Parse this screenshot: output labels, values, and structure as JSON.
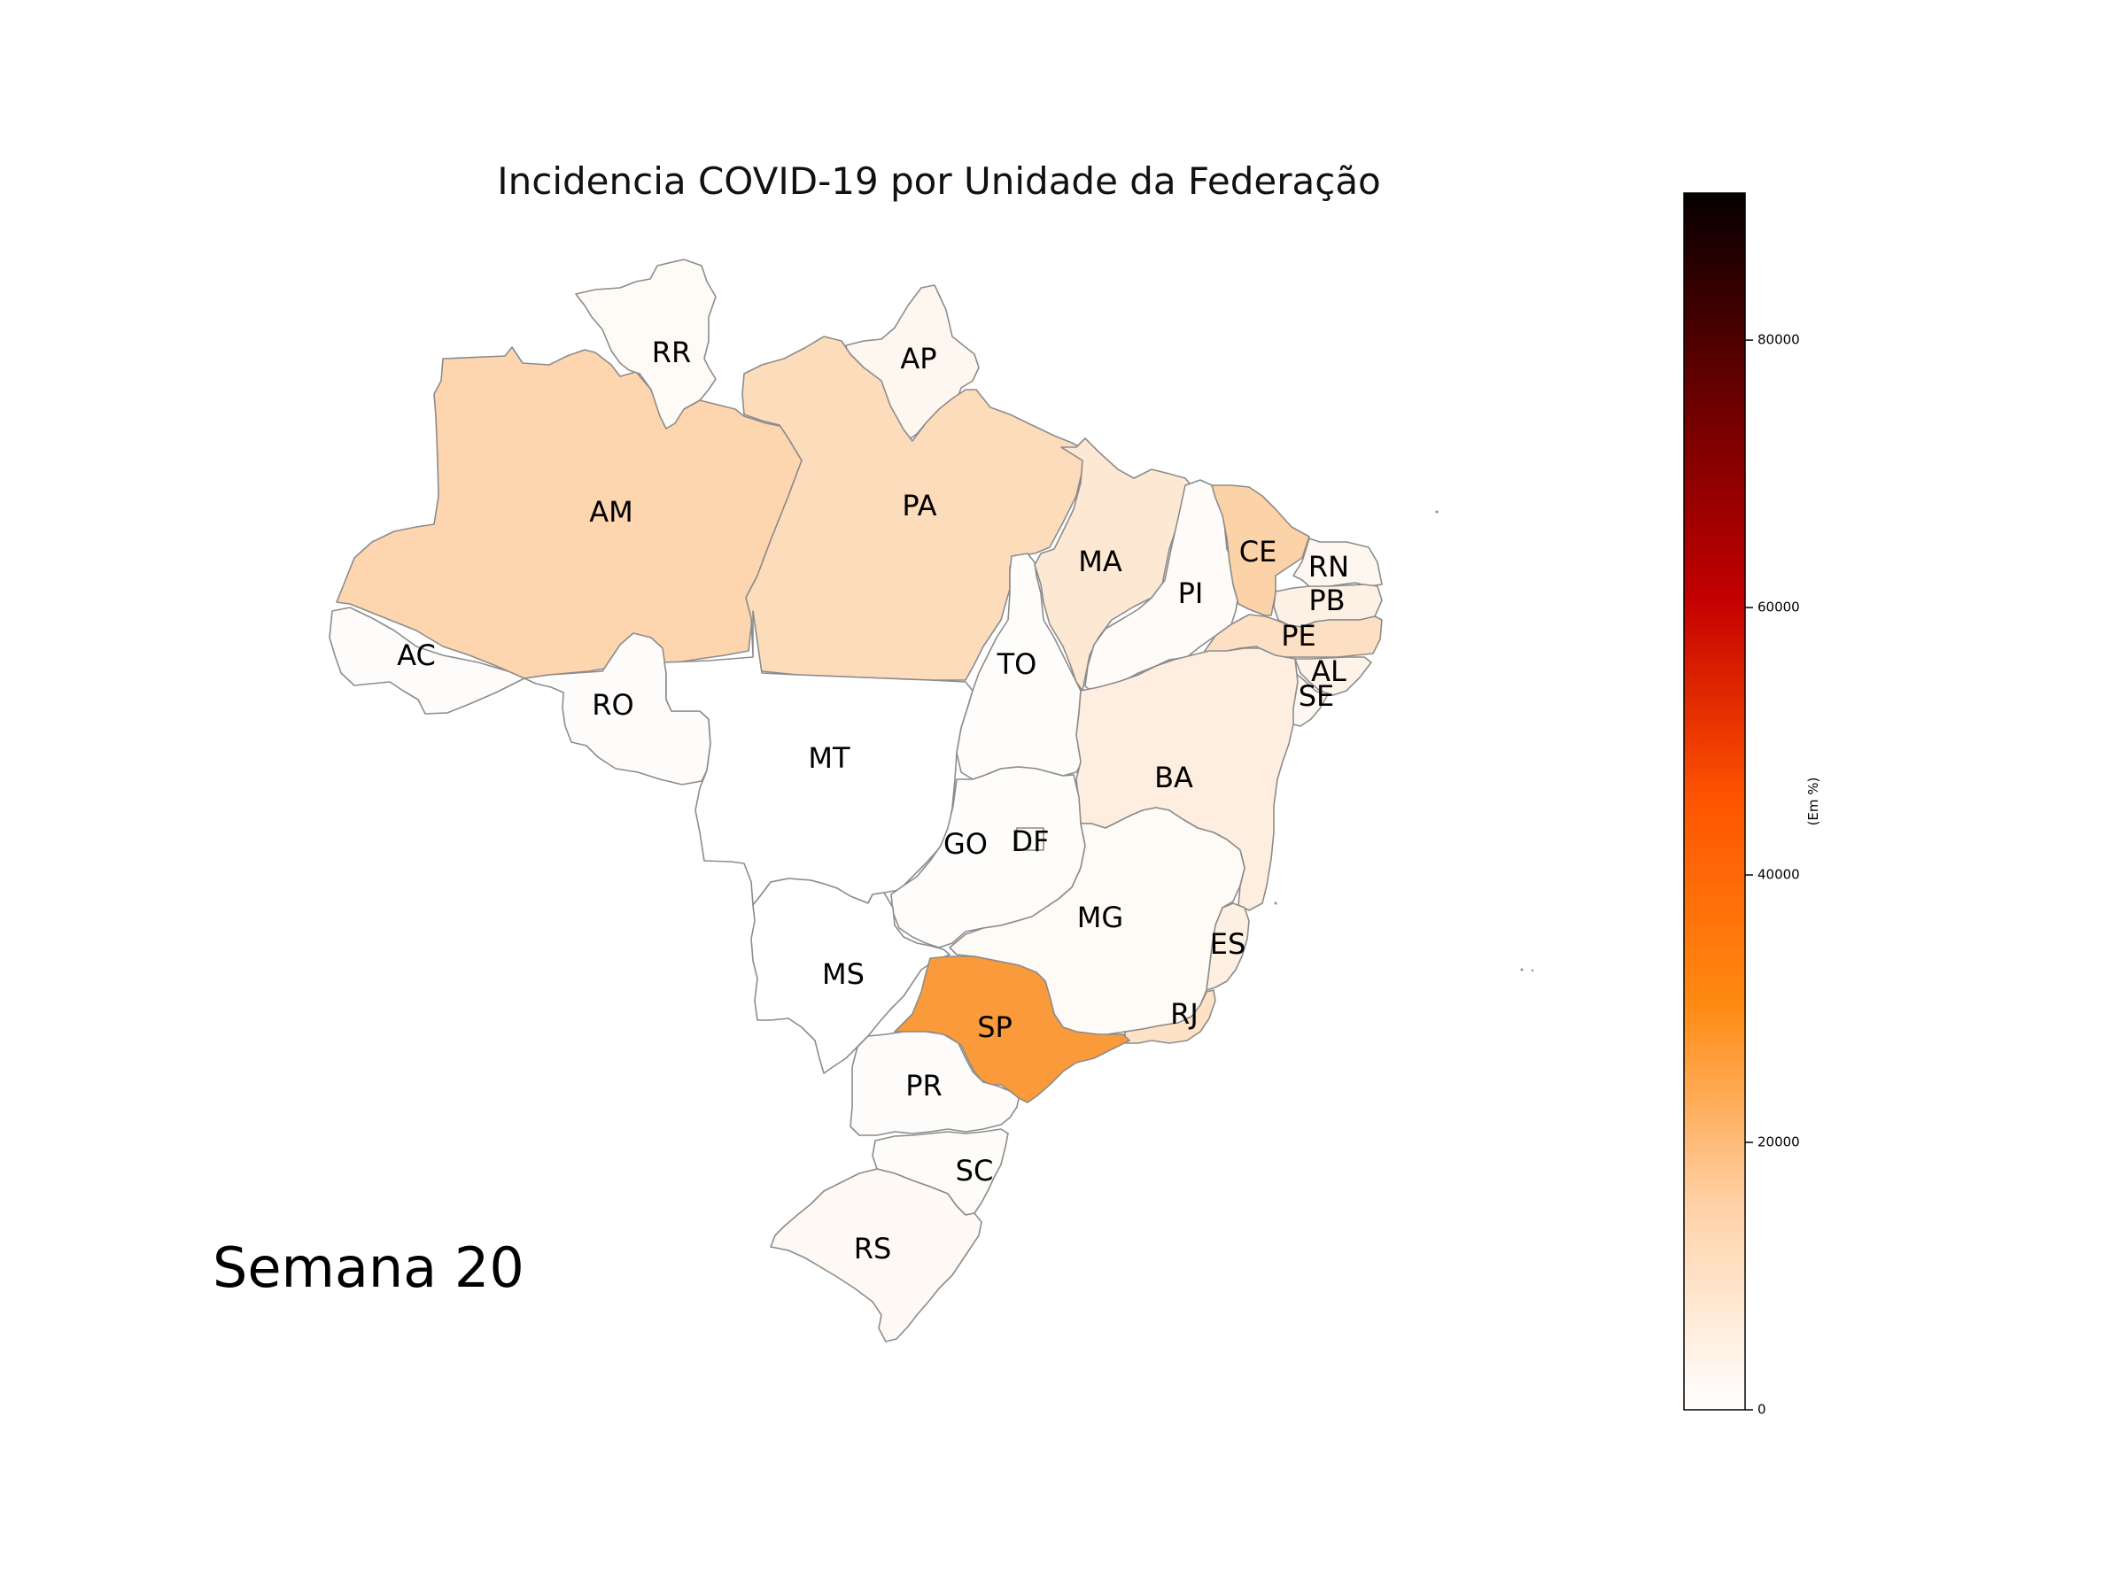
{
  "title": "Incidencia COVID-19 por Unidade da Federação",
  "week_label": "Semana 20",
  "colorbar": {
    "label": "(Em %)",
    "min": 0,
    "max": 91000,
    "ticks": [
      "0",
      "20000",
      "40000",
      "60000",
      "80000"
    ],
    "tick_values": [
      0,
      20000,
      40000,
      60000,
      80000
    ],
    "colormap": "gist_heat_r",
    "stops": [
      "#ffffff",
      "#ffd2a8",
      "#ff8a12",
      "#ff5500",
      "#c40000",
      "#6a0000",
      "#050000"
    ]
  },
  "map": {
    "border_color": "#8c8c8c",
    "states": [
      {
        "uf": "AC",
        "fill": "#fefcfa"
      },
      {
        "uf": "AM",
        "fill": "#fdd5ae"
      },
      {
        "uf": "RR",
        "fill": "#fefaf6"
      },
      {
        "uf": "AP",
        "fill": "#fef7f0"
      },
      {
        "uf": "PA",
        "fill": "#fddcbc"
      },
      {
        "uf": "RO",
        "fill": "#fefcfa"
      },
      {
        "uf": "MT",
        "fill": "#ffffff"
      },
      {
        "uf": "TO",
        "fill": "#fefdfc"
      },
      {
        "uf": "MA",
        "fill": "#fde8d4"
      },
      {
        "uf": "PI",
        "fill": "#fefbf8"
      },
      {
        "uf": "CE",
        "fill": "#fcd2a8"
      },
      {
        "uf": "RN",
        "fill": "#fef7f0"
      },
      {
        "uf": "PB",
        "fill": "#fdf1e6"
      },
      {
        "uf": "PE",
        "fill": "#fde0c3"
      },
      {
        "uf": "AL",
        "fill": "#fdf3e9"
      },
      {
        "uf": "SE",
        "fill": "#fef8f2"
      },
      {
        "uf": "BA",
        "fill": "#fdeee0"
      },
      {
        "uf": "GO",
        "fill": "#fefdfc"
      },
      {
        "uf": "DF",
        "fill": "#fefcf9"
      },
      {
        "uf": "MG",
        "fill": "#fefaf5"
      },
      {
        "uf": "ES",
        "fill": "#fdf0e3"
      },
      {
        "uf": "RJ",
        "fill": "#fde2c6"
      },
      {
        "uf": "MS",
        "fill": "#ffffff"
      },
      {
        "uf": "SP",
        "fill": "#fb9a3a"
      },
      {
        "uf": "PR",
        "fill": "#fefcfa"
      },
      {
        "uf": "SC",
        "fill": "#fefcf9"
      },
      {
        "uf": "RS",
        "fill": "#fef9f4"
      }
    ]
  }
}
